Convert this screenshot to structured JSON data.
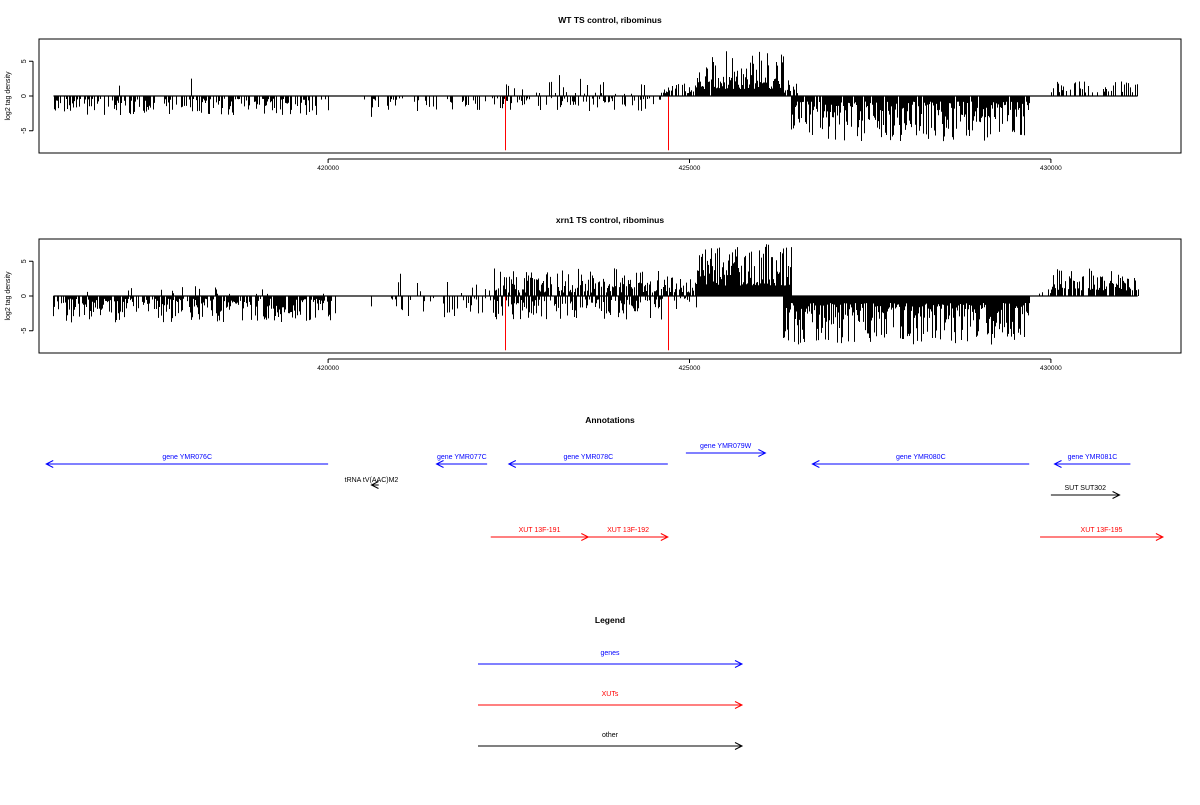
{
  "chart_data": [
    {
      "type": "bar",
      "title": "WT TS control, ribominus",
      "ylabel": "log2 tag density",
      "xlabel": "",
      "xlim": [
        416000,
        431800
      ],
      "ylim": [
        -8.2,
        8.2
      ],
      "xticks": [
        420000,
        425000,
        430000
      ],
      "xtick_labels": [
        "420000",
        "425000",
        "430000"
      ],
      "yticks": [
        -5,
        0,
        5
      ],
      "ytick_labels": [
        "-5",
        "0",
        "5"
      ],
      "baseline": {
        "y": 0,
        "x_range": [
          416200,
          431200
        ]
      },
      "profile": [
        {
          "x_range": [
            416200,
            420000
          ],
          "sign": -1,
          "min": 0.4,
          "max": 2.8,
          "fill": 0.55
        },
        {
          "x_range": [
            420500,
            422300
          ],
          "sign": -1,
          "min": 0.3,
          "max": 2.2,
          "fill": 0.25
        },
        {
          "x_range": [
            422300,
            424600
          ],
          "sign": -1,
          "min": 0.3,
          "max": 2.2,
          "fill": 0.35
        },
        {
          "x_range": [
            422300,
            424600
          ],
          "sign": 1,
          "min": 0.3,
          "max": 2.5,
          "fill": 0.15
        },
        {
          "x_range": [
            424600,
            425100
          ],
          "sign": 1,
          "min": 0.4,
          "max": 2.0,
          "fill": 0.4
        },
        {
          "x_range": [
            425100,
            426300
          ],
          "sign": 1,
          "min": 1.0,
          "max": 6.5,
          "fill": 0.95
        },
        {
          "x_range": [
            426300,
            426500
          ],
          "sign": 1,
          "min": 0.4,
          "max": 2.5,
          "fill": 0.6
        },
        {
          "x_range": [
            426400,
            429700
          ],
          "sign": -1,
          "min": 0.8,
          "max": 6.5,
          "fill": 0.9
        },
        {
          "x_range": [
            430000,
            431200
          ],
          "sign": 1,
          "min": 0.5,
          "max": 2.5,
          "fill": 0.45
        }
      ],
      "spikes": [
        {
          "x": 417100,
          "y": 1.5
        },
        {
          "x": 418100,
          "y": 2.5
        },
        {
          "x": 420600,
          "y": -3.0
        },
        {
          "x": 423200,
          "y": 3.0
        },
        {
          "x": 423800,
          "y": 2.0
        }
      ],
      "highlights": [
        {
          "x": 422450,
          "y": -7.8,
          "color": "#ff0000"
        },
        {
          "x": 424700,
          "y": -7.8,
          "color": "#ff0000"
        }
      ]
    },
    {
      "type": "bar",
      "title": "xrn1 TS control, ribominus",
      "ylabel": "log2 tag density",
      "xlabel": "",
      "xlim": [
        416000,
        431800
      ],
      "ylim": [
        -8.2,
        8.2
      ],
      "xticks": [
        420000,
        425000,
        430000
      ],
      "xtick_labels": [
        "420000",
        "425000",
        "430000"
      ],
      "yticks": [
        -5,
        0,
        5
      ],
      "ytick_labels": [
        "-5",
        "0",
        "5"
      ],
      "baseline": {
        "y": 0,
        "x_range": [
          416200,
          431200
        ]
      },
      "profile": [
        {
          "x_range": [
            416200,
            420100
          ],
          "sign": -1,
          "min": 0.4,
          "max": 3.8,
          "fill": 0.8
        },
        {
          "x_range": [
            416200,
            420100
          ],
          "sign": 1,
          "min": 0.3,
          "max": 1.5,
          "fill": 0.08
        },
        {
          "x_range": [
            420800,
            422300
          ],
          "sign": -1,
          "min": 0.3,
          "max": 3.5,
          "fill": 0.3
        },
        {
          "x_range": [
            420800,
            422300
          ],
          "sign": 1,
          "min": 0.4,
          "max": 3.2,
          "fill": 0.15
        },
        {
          "x_range": [
            422300,
            424600
          ],
          "sign": 1,
          "min": 0.5,
          "max": 4.0,
          "fill": 0.75
        },
        {
          "x_range": [
            422300,
            424600
          ],
          "sign": -1,
          "min": 0.5,
          "max": 3.5,
          "fill": 0.65
        },
        {
          "x_range": [
            424600,
            425100
          ],
          "sign": 1,
          "min": 0.5,
          "max": 3.0,
          "fill": 0.6
        },
        {
          "x_range": [
            424600,
            425100
          ],
          "sign": -1,
          "min": 0.3,
          "max": 2.0,
          "fill": 0.3
        },
        {
          "x_range": [
            425100,
            426400
          ],
          "sign": 1,
          "min": 1.5,
          "max": 7.5,
          "fill": 1.0
        },
        {
          "x_range": [
            426300,
            429700
          ],
          "sign": -1,
          "min": 1.0,
          "max": 7.0,
          "fill": 1.0
        },
        {
          "x_range": [
            429700,
            430200
          ],
          "sign": 1,
          "min": 0.3,
          "max": 1.5,
          "fill": 0.2
        },
        {
          "x_range": [
            430000,
            431200
          ],
          "sign": 1,
          "min": 0.8,
          "max": 4.0,
          "fill": 0.85
        }
      ],
      "spikes": [
        {
          "x": 421000,
          "y": 3.2
        },
        {
          "x": 420600,
          "y": -1.5
        },
        {
          "x": 424700,
          "y": -4.5
        }
      ],
      "highlights": [
        {
          "x": 422450,
          "y": -7.8,
          "color": "#ff0000"
        },
        {
          "x": 424700,
          "y": -7.8,
          "color": "#ff0000"
        }
      ]
    }
  ],
  "annotations": {
    "title": "Annotations",
    "features": [
      {
        "label": "gene YMR076C",
        "start": 416100,
        "end": 420000,
        "strand": "-",
        "track": "gene",
        "row": 0
      },
      {
        "label": "gene YMR077C",
        "start": 421500,
        "end": 422200,
        "strand": "-",
        "track": "gene",
        "row": 0
      },
      {
        "label": "gene YMR078C",
        "start": 422500,
        "end": 424700,
        "strand": "-",
        "track": "gene",
        "row": 0
      },
      {
        "label": "gene YMR079W",
        "start": 424950,
        "end": 426050,
        "strand": "+",
        "track": "gene",
        "row": -1
      },
      {
        "label": "gene YMR080C",
        "start": 426700,
        "end": 429700,
        "strand": "-",
        "track": "gene",
        "row": 0
      },
      {
        "label": "gene YMR081C",
        "start": 430050,
        "end": 431100,
        "strand": "-",
        "track": "gene",
        "row": 0
      },
      {
        "label": "tRNA tV(AAC)M2",
        "start": 420600,
        "end": 420700,
        "strand": "-",
        "track": "other",
        "row": 1
      },
      {
        "label": "SUT SUT302",
        "start": 430000,
        "end": 430950,
        "strand": "+",
        "track": "other",
        "row": 2
      },
      {
        "label": "XUT 13F-191",
        "start": 422250,
        "end": 423600,
        "strand": "+",
        "track": "xut",
        "row": 4
      },
      {
        "label": "XUT 13F-192",
        "start": 423600,
        "end": 424700,
        "strand": "+",
        "track": "xut",
        "row": 4
      },
      {
        "label": "XUT 13F-195",
        "start": 429850,
        "end": 431550,
        "strand": "+",
        "track": "xut",
        "row": 4
      }
    ]
  },
  "legend": {
    "title": "Legend",
    "items": [
      {
        "label": "genes",
        "color": "#0000ff"
      },
      {
        "label": "XUTs",
        "color": "#ff0000"
      },
      {
        "label": "other",
        "color": "#000000"
      }
    ]
  },
  "colors": {
    "gene": "#0000ff",
    "xut": "#ff0000",
    "other": "#000000",
    "bars": "#000000",
    "highlight": "#ff0000"
  }
}
